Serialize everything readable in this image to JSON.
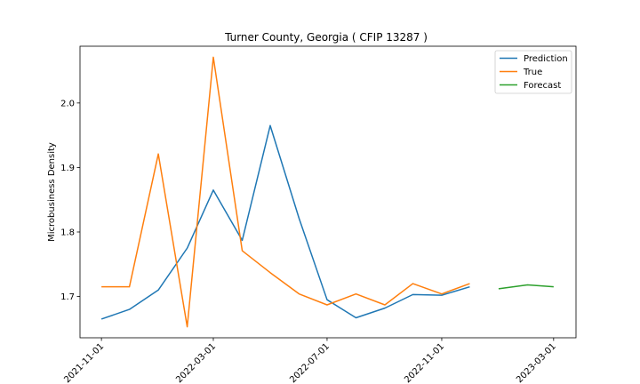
{
  "chart_data": {
    "type": "line",
    "title": "Turner County, Georgia ( CFIP 13287 )",
    "xlabel": "",
    "ylabel": "Microbusiness Density",
    "x_ticks": [
      "2021-11-01",
      "2022-03-01",
      "2022-07-01",
      "2022-11-01",
      "2023-03-01"
    ],
    "y_ticks": [
      "1.7",
      "1.8",
      "1.9",
      "2.0"
    ],
    "ylim": [
      1.636,
      2.088
    ],
    "xlim": [
      "2021-10-09",
      "2023-03-25"
    ],
    "legend_position": "top-right",
    "grid": false,
    "series": [
      {
        "name": "Prediction",
        "color": "#1f77b4",
        "x": [
          "2021-11-01",
          "2021-12-01",
          "2022-01-01",
          "2022-02-01",
          "2022-03-01",
          "2022-04-01",
          "2022-05-01",
          "2022-06-01",
          "2022-07-01",
          "2022-08-01",
          "2022-09-01",
          "2022-10-01",
          "2022-11-01",
          "2022-12-01"
        ],
        "y": [
          1.665,
          1.68,
          1.71,
          1.775,
          1.865,
          1.787,
          1.965,
          1.821,
          1.695,
          1.667,
          1.682,
          1.703,
          1.702,
          1.715
        ]
      },
      {
        "name": "True",
        "color": "#ff7f0e",
        "x": [
          "2021-11-01",
          "2021-12-01",
          "2022-01-01",
          "2022-02-01",
          "2022-03-01",
          "2022-04-01",
          "2022-05-01",
          "2022-06-01",
          "2022-07-01",
          "2022-08-01",
          "2022-09-01",
          "2022-10-01",
          "2022-11-01",
          "2022-12-01"
        ],
        "y": [
          1.715,
          1.715,
          1.921,
          1.653,
          2.071,
          1.771,
          1.737,
          1.704,
          1.687,
          1.704,
          1.687,
          1.72,
          1.704,
          1.72
        ]
      },
      {
        "name": "Forecast",
        "color": "#2ca02c",
        "x": [
          "2023-01-01",
          "2023-02-01",
          "2023-03-01"
        ],
        "y": [
          1.712,
          1.718,
          1.715
        ]
      }
    ]
  }
}
